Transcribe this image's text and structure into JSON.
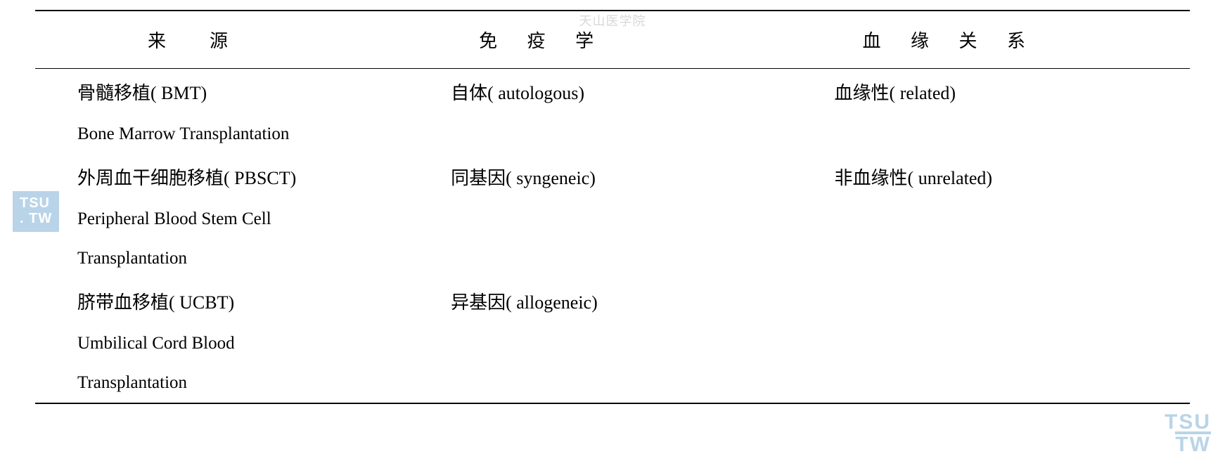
{
  "watermarks": {
    "top": "天山医学院",
    "left_line1": "TSU",
    "left_line2": ". TW",
    "right_line1": "TSU",
    "right_line2": "TW"
  },
  "table": {
    "headers": {
      "col1": "来　源",
      "col2": "免 疫 学",
      "col3": "血 缘 关 系"
    },
    "rows": [
      {
        "col1": "骨髓移植( BMT)",
        "col2": "自体( autologous)",
        "col3": "血缘性( related)"
      },
      {
        "col1_en": "Bone Marrow Transplantation",
        "col2": "",
        "col3": ""
      },
      {
        "col1": "外周血干细胞移植( PBSCT)",
        "col2": "同基因( syngeneic)",
        "col3": "非血缘性( unrelated)"
      },
      {
        "col1_en": "Peripheral Blood Stem Cell",
        "col2": "",
        "col3": ""
      },
      {
        "col1_en": "Transplantation",
        "col2": "",
        "col3": ""
      },
      {
        "col1": "脐带血移植( UCBT)",
        "col2": "异基因( allogeneic)",
        "col3": ""
      },
      {
        "col1_en": "Umbilical Cord Blood",
        "col2": "",
        "col3": ""
      },
      {
        "col1_en": "Transplantation",
        "col2": "",
        "col3": ""
      }
    ]
  },
  "colors": {
    "text": "#000000",
    "border": "#000000",
    "watermark_faint": "#d8d8d8",
    "watermark_blue": "#b9d4e8",
    "background": "#ffffff"
  },
  "typography": {
    "header_fontsize": 26,
    "body_fontsize": 26,
    "header_letter_spacing": 18,
    "font_family_cjk": "SimSun",
    "font_family_latin": "Times New Roman"
  }
}
